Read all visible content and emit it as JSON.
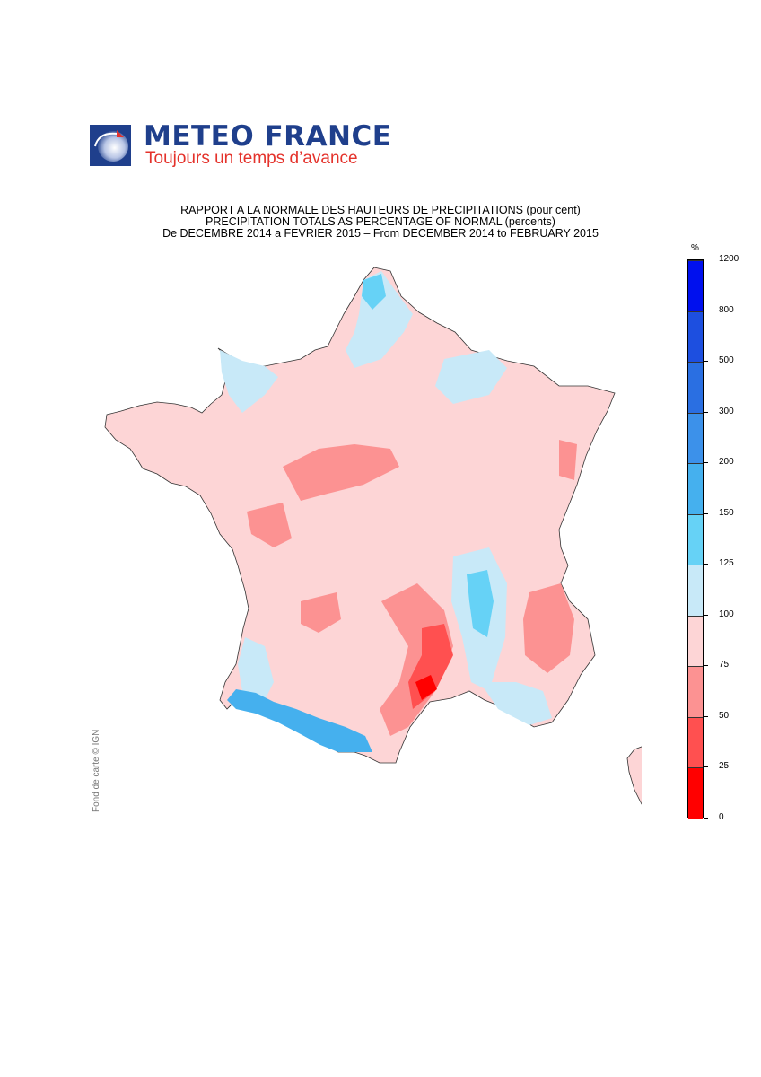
{
  "logo": {
    "name": "METEO FRANCE",
    "tagline": "Toujours un temps d’avance",
    "colors": {
      "brand_blue": "#1f3f8c",
      "brand_red": "#e4322b"
    }
  },
  "titles": {
    "line1": "RAPPORT A LA NORMALE DES HAUTEURS DE PRECIPITATIONS (pour cent)",
    "line2": "PRECIPITATION TOTALS AS PERCENTAGE OF NORMAL (percents)",
    "line3": "De DECEMBRE 2014 a FEVRIER 2015 – From DECEMBER 2014 to FEBRUARY 2015"
  },
  "credit": "Fond de carte © IGN",
  "legend": {
    "unit": "%",
    "classes": [
      {
        "label": "0",
        "color": "#ff0000"
      },
      {
        "label": "25",
        "color": "#ff5050"
      },
      {
        "label": "50",
        "color": "#fc9292"
      },
      {
        "label": "75",
        "color": "#fdd5d6"
      },
      {
        "label": "100",
        "color": "#c8e9f8"
      },
      {
        "label": "125",
        "color": "#66d2f6"
      },
      {
        "label": "150",
        "color": "#45b0ee"
      },
      {
        "label": "200",
        "color": "#3c91ea"
      },
      {
        "label": "300",
        "color": "#2a6fe2"
      },
      {
        "label": "500",
        "color": "#1d4fe0"
      },
      {
        "label": "800",
        "color": "#0010ee"
      }
    ],
    "top_label": "1200"
  },
  "map": {
    "regions": [
      "france-mainland",
      "corsica"
    ]
  }
}
